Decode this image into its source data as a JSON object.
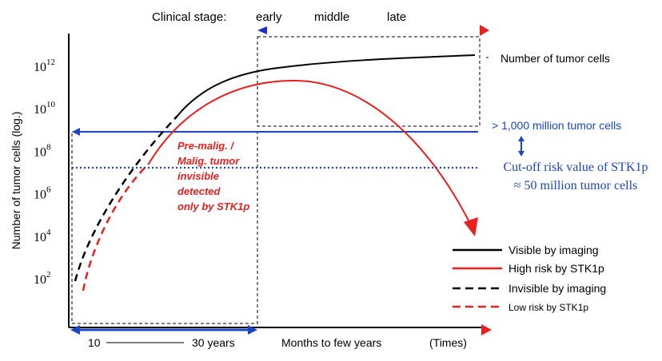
{
  "chart_data": {
    "type": "line",
    "ylabel": "Number of tumor cells (log.)",
    "y_scale": "log",
    "y_tick_labels": [
      {
        "base": "10",
        "exp": "2",
        "value": 100
      },
      {
        "base": "10",
        "exp": "4",
        "value": 10000
      },
      {
        "base": "10",
        "exp": "6",
        "value": 1000000
      },
      {
        "base": "10",
        "exp": "8",
        "value": 100000000
      },
      {
        "base": "10",
        "exp": "10",
        "value": 10000000000
      },
      {
        "base": "10",
        "exp": "12",
        "value": 1000000000000
      }
    ],
    "clinical_stage": {
      "label": "Clinical stage:",
      "stages": [
        "early",
        "middle",
        "late"
      ]
    },
    "x_labels": {
      "years_start": "10",
      "years_end": "30 years",
      "months": "Months to few years",
      "times": "(Times)"
    },
    "annotations": {
      "tumor_cells": "Number of tumor cells",
      "threshold": "> 1,000 million tumor cells",
      "cutoff_line1": "Cut-off risk value of STK1p",
      "cutoff_line2": "≈ 50 million tumor cells",
      "premalig": [
        "Pre-malig. /",
        "Malig. tumor",
        "invisible",
        "detected",
        "only by STK1p"
      ]
    },
    "series": [
      {
        "name": "Visible by imaging",
        "color": "#000000",
        "style": "solid"
      },
      {
        "name": "High risk by STK1p",
        "color": "#e8201e",
        "style": "solid"
      },
      {
        "name": "Invisible by imaging",
        "color": "#000000",
        "style": "dashed"
      },
      {
        "name": "Low risk by STK1p",
        "color": "#e8201e",
        "style": "dashed"
      }
    ],
    "colors": {
      "blue": "#1c44c8",
      "red": "#e8201e",
      "black": "#000000"
    }
  }
}
